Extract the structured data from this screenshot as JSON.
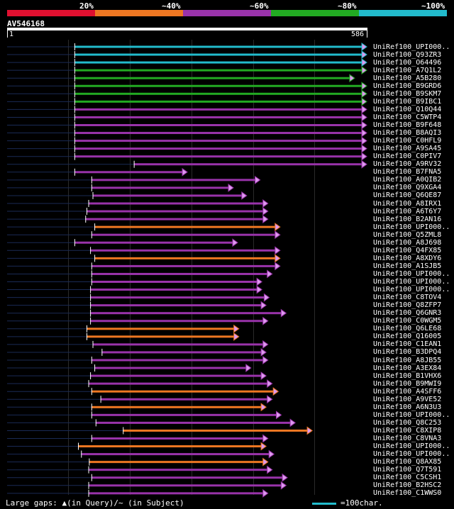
{
  "legend": {
    "colors": [
      "#e01030",
      "#ee7722",
      "#9933aa",
      "#22aa22",
      "#22bbcc"
    ],
    "labels": [
      "20%",
      "~40%",
      "~60%",
      "~80%",
      "~100%"
    ]
  },
  "query": {
    "id": "AV546168",
    "start": "1",
    "end": "586"
  },
  "footer": {
    "gaps_text": "Large gaps: ▲(in Query)/~ (in Subject)",
    "scale_text": "=100char."
  },
  "colors": {
    "teal": "#22bbcc",
    "green": "#22aa22",
    "purple": "#9933aa",
    "orange": "#ee7722",
    "arrow": "#dd99ee"
  },
  "hits": [
    {
      "label": "UniRef100_UPI000..",
      "color": "teal",
      "start": 112,
      "end": 586
    },
    {
      "label": "UniRef100_Q93ZR3",
      "color": "teal",
      "start": 112,
      "end": 586
    },
    {
      "label": "UniRef100_O64496",
      "color": "teal",
      "start": 112,
      "end": 586
    },
    {
      "label": "UniRef100_A7Q1L2",
      "color": "green",
      "start": 112,
      "end": 586
    },
    {
      "label": "UniRef100_A5B280",
      "color": "green",
      "start": 112,
      "end": 566
    },
    {
      "label": "UniRef100_B9GRD6",
      "color": "green",
      "start": 112,
      "end": 586
    },
    {
      "label": "UniRef100_B9SKM7",
      "color": "green",
      "start": 112,
      "end": 586
    },
    {
      "label": "UniRef100_B9IBC1",
      "color": "green",
      "start": 112,
      "end": 586
    },
    {
      "label": "UniRef100_Q10Q44",
      "color": "purple",
      "start": 112,
      "end": 586
    },
    {
      "label": "UniRef100_C5WTP4",
      "color": "purple",
      "start": 112,
      "end": 586
    },
    {
      "label": "UniRef100_B9F648",
      "color": "purple",
      "start": 112,
      "end": 586
    },
    {
      "label": "UniRef100_B8AQI3",
      "color": "purple",
      "start": 112,
      "end": 586
    },
    {
      "label": "UniRef100_C0HFL9",
      "color": "purple",
      "start": 112,
      "end": 586
    },
    {
      "label": "UniRef100_A9SA45",
      "color": "purple",
      "start": 112,
      "end": 586
    },
    {
      "label": "UniRef100_C0PIV7",
      "color": "purple",
      "start": 112,
      "end": 586
    },
    {
      "label": "UniRef100_A9RV32",
      "color": "purple",
      "start": 210,
      "end": 586
    },
    {
      "label": "UniRef100_B7FNA5",
      "color": "purple",
      "start": 112,
      "end": 290
    },
    {
      "label": "UniRef100_A0QIB2",
      "color": "purple",
      "start": 140,
      "end": 410
    },
    {
      "label": "UniRef100_Q9XGA4",
      "color": "purple",
      "start": 140,
      "end": 366
    },
    {
      "label": "UniRef100_Q6QE87",
      "color": "purple",
      "start": 142,
      "end": 388
    },
    {
      "label": "UniRef100_A8IRX1",
      "color": "purple",
      "start": 135,
      "end": 423
    },
    {
      "label": "UniRef100_A6T6Y7",
      "color": "purple",
      "start": 132,
      "end": 423
    },
    {
      "label": "UniRef100_B2AN16",
      "color": "purple",
      "start": 130,
      "end": 423
    },
    {
      "label": "UniRef100_UPI000..",
      "color": "orange",
      "start": 145,
      "end": 443
    },
    {
      "label": "UniRef100_Q5ZML8",
      "color": "purple",
      "start": 140,
      "end": 443
    },
    {
      "label": "UniRef100_A8J698",
      "color": "purple",
      "start": 112,
      "end": 373
    },
    {
      "label": "UniRef100_Q4FX85",
      "color": "purple",
      "start": 138,
      "end": 443
    },
    {
      "label": "UniRef100_A8XDY6",
      "color": "orange",
      "start": 145,
      "end": 443
    },
    {
      "label": "UniRef100_A1SJB5",
      "color": "purple",
      "start": 140,
      "end": 443
    },
    {
      "label": "UniRef100_UPI000..",
      "color": "purple",
      "start": 140,
      "end": 430
    },
    {
      "label": "UniRef100_UPI000..",
      "color": "purple",
      "start": 140,
      "end": 413
    },
    {
      "label": "UniRef100_UPI000..",
      "color": "purple",
      "start": 138,
      "end": 413
    },
    {
      "label": "UniRef100_C8TOV4",
      "color": "purple",
      "start": 138,
      "end": 425
    },
    {
      "label": "UniRef100_Q8ZFP7",
      "color": "purple",
      "start": 138,
      "end": 420
    },
    {
      "label": "UniRef100_Q6GNR3",
      "color": "purple",
      "start": 138,
      "end": 453
    },
    {
      "label": "UniRef100_C0WGM5",
      "color": "purple",
      "start": 138,
      "end": 423
    },
    {
      "label": "UniRef100_Q6LE68",
      "color": "orange",
      "start": 132,
      "end": 375
    },
    {
      "label": "UniRef100_Q16005",
      "color": "orange",
      "start": 132,
      "end": 375
    },
    {
      "label": "UniRef100_C1EAN1",
      "color": "purple",
      "start": 142,
      "end": 423
    },
    {
      "label": "UniRef100_B3DPQ4",
      "color": "purple",
      "start": 157,
      "end": 420
    },
    {
      "label": "UniRef100_A8JB55",
      "color": "purple",
      "start": 140,
      "end": 423
    },
    {
      "label": "UniRef100_A3EX84",
      "color": "purple",
      "start": 145,
      "end": 395
    },
    {
      "label": "UniRef100_B1VHX6",
      "color": "purple",
      "start": 138,
      "end": 420
    },
    {
      "label": "UniRef100_B9MWI9",
      "color": "purple",
      "start": 135,
      "end": 430
    },
    {
      "label": "UniRef100_A4SFF6",
      "color": "orange",
      "start": 140,
      "end": 440
    },
    {
      "label": "UniRef100_A9VE52",
      "color": "purple",
      "start": 155,
      "end": 430
    },
    {
      "label": "UniRef100_A6N3U3",
      "color": "orange",
      "start": 140,
      "end": 420
    },
    {
      "label": "UniRef100_UPI000..",
      "color": "purple",
      "start": 140,
      "end": 445
    },
    {
      "label": "UniRef100_Q8C253",
      "color": "purple",
      "start": 147,
      "end": 468
    },
    {
      "label": "UniRef100_C8XIP8",
      "color": "orange",
      "start": 192,
      "end": 496
    },
    {
      "label": "UniRef100_C8VNA3",
      "color": "purple",
      "start": 140,
      "end": 423
    },
    {
      "label": "UniRef100_UPI000..",
      "color": "orange",
      "start": 118,
      "end": 420
    },
    {
      "label": "UniRef100_UPI000..",
      "color": "purple",
      "start": 123,
      "end": 433
    },
    {
      "label": "UniRef100_Q8AX85",
      "color": "orange",
      "start": 136,
      "end": 423
    },
    {
      "label": "UniRef100_Q7T591",
      "color": "purple",
      "start": 135,
      "end": 430
    },
    {
      "label": "UniRef100_C5CSH1",
      "color": "purple",
      "start": 140,
      "end": 455
    },
    {
      "label": "UniRef100_B2HSC2",
      "color": "purple",
      "start": 135,
      "end": 453
    },
    {
      "label": "UniRef100_C1WWS0",
      "color": "purple",
      "start": 135,
      "end": 423
    }
  ]
}
